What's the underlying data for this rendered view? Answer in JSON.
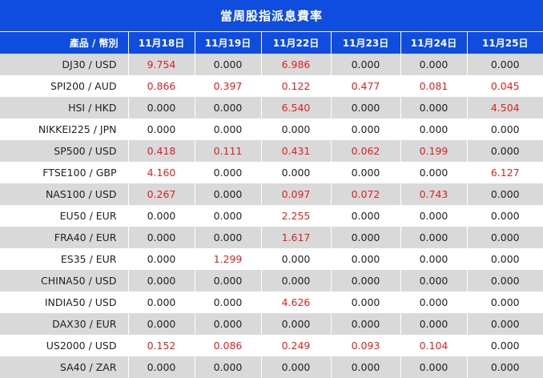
{
  "title": "當周股指派息費率",
  "colors": {
    "header_bg": "#0f4de0",
    "positive": "#e02020",
    "zero": "#222222",
    "stripe": "#d9d9d9"
  },
  "headers": [
    "產品 / 幣別",
    "11月18日",
    "11月19日",
    "11月22日",
    "11月23日",
    "11月24日",
    "11月25日"
  ],
  "rows": [
    {
      "product": "DJ30 / USD",
      "values": [
        "9.754",
        "0.000",
        "6.986",
        "0.000",
        "0.000",
        "0.000"
      ]
    },
    {
      "product": "SPI200 / AUD",
      "values": [
        "0.866",
        "0.397",
        "0.122",
        "0.477",
        "0.081",
        "0.045"
      ]
    },
    {
      "product": "HSI / HKD",
      "values": [
        "0.000",
        "0.000",
        "6.540",
        "0.000",
        "0.000",
        "4.504"
      ]
    },
    {
      "product": "NIKKEI225 / JPN",
      "values": [
        "0.000",
        "0.000",
        "0.000",
        "0.000",
        "0.000",
        "0.000"
      ]
    },
    {
      "product": "SP500 / USD",
      "values": [
        "0.418",
        "0.111",
        "0.431",
        "0.062",
        "0.199",
        "0.000"
      ]
    },
    {
      "product": "FTSE100 / GBP",
      "values": [
        "4.160",
        "0.000",
        "0.000",
        "0.000",
        "0.000",
        "6.127"
      ]
    },
    {
      "product": "NAS100 / USD",
      "values": [
        "0.267",
        "0.000",
        "0.097",
        "0.072",
        "0.743",
        "0.000"
      ]
    },
    {
      "product": "EU50 / EUR",
      "values": [
        "0.000",
        "0.000",
        "2.255",
        "0.000",
        "0.000",
        "0.000"
      ]
    },
    {
      "product": "FRA40 / EUR",
      "values": [
        "0.000",
        "0.000",
        "1.617",
        "0.000",
        "0.000",
        "0.000"
      ]
    },
    {
      "product": "ES35 / EUR",
      "values": [
        "0.000",
        "1.299",
        "0.000",
        "0.000",
        "0.000",
        "0.000"
      ]
    },
    {
      "product": "CHINA50 / USD",
      "values": [
        "0.000",
        "0.000",
        "0.000",
        "0.000",
        "0.000",
        "0.000"
      ]
    },
    {
      "product": "INDIA50 / USD",
      "values": [
        "0.000",
        "0.000",
        "4.626",
        "0.000",
        "0.000",
        "0.000"
      ]
    },
    {
      "product": "DAX30 / EUR",
      "values": [
        "0.000",
        "0.000",
        "0.000",
        "0.000",
        "0.000",
        "0.000"
      ]
    },
    {
      "product": "US2000 / USD",
      "values": [
        "0.152",
        "0.086",
        "0.249",
        "0.093",
        "0.104",
        "0.000"
      ]
    },
    {
      "product": "SA40 / ZAR",
      "values": [
        "0.000",
        "0.000",
        "0.000",
        "0.000",
        "0.000",
        "0.000"
      ]
    }
  ]
}
